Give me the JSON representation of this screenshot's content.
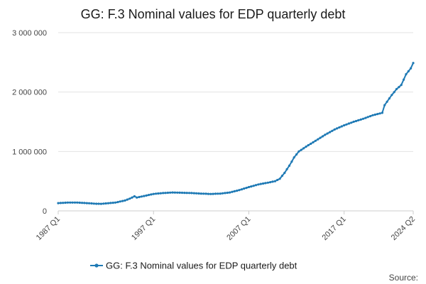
{
  "chart_data": {
    "type": "line",
    "title": "GG: F.3 Nominal values for EDP quarterly debt",
    "source_label": "Source:",
    "series_color": "#1f7ab5",
    "grid": true,
    "ylim": [
      0,
      3000000
    ],
    "y_ticks": [
      {
        "value": 0,
        "label": "0"
      },
      {
        "value": 1000000,
        "label": "1 000 000"
      },
      {
        "value": 2000000,
        "label": "2 000 000"
      },
      {
        "value": 3000000,
        "label": "3 000 000"
      }
    ],
    "x_range": [
      "1987 Q1",
      "2024 Q2"
    ],
    "x_ticks": [
      "1987 Q1",
      "1997 Q1",
      "2007 Q1",
      "2017 Q1",
      "2024 Q2"
    ],
    "legend": {
      "position": "bottom",
      "label": "GG: F.3 Nominal values for EDP quarterly debt"
    },
    "series": [
      {
        "name": "GG: F.3 Nominal values for EDP quarterly debt",
        "points": [
          [
            "1987 Q1",
            130000
          ],
          [
            "1988 Q1",
            140000
          ],
          [
            "1989 Q1",
            140000
          ],
          [
            "1990 Q1",
            130000
          ],
          [
            "1991 Q1",
            120000
          ],
          [
            "1991 Q3",
            118000
          ],
          [
            "1992 Q1",
            125000
          ],
          [
            "1993 Q1",
            140000
          ],
          [
            "1994 Q1",
            175000
          ],
          [
            "1994 Q3",
            205000
          ],
          [
            "1995 Q1",
            245000
          ],
          [
            "1995 Q2",
            225000
          ],
          [
            "1996 Q1",
            250000
          ],
          [
            "1997 Q1",
            285000
          ],
          [
            "1998 Q1",
            300000
          ],
          [
            "1999 Q1",
            310000
          ],
          [
            "2000 Q1",
            305000
          ],
          [
            "2001 Q1",
            300000
          ],
          [
            "2002 Q1",
            290000
          ],
          [
            "2003 Q1",
            285000
          ],
          [
            "2004 Q1",
            290000
          ],
          [
            "2005 Q1",
            310000
          ],
          [
            "2006 Q1",
            350000
          ],
          [
            "2007 Q1",
            400000
          ],
          [
            "2008 Q1",
            445000
          ],
          [
            "2009 Q1",
            475000
          ],
          [
            "2009 Q4",
            500000
          ],
          [
            "2010 Q2",
            540000
          ],
          [
            "2010 Q4",
            640000
          ],
          [
            "2011 Q2",
            760000
          ],
          [
            "2011 Q4",
            900000
          ],
          [
            "2012 Q2",
            1000000
          ],
          [
            "2013 Q1",
            1080000
          ],
          [
            "2014 Q1",
            1180000
          ],
          [
            "2015 Q1",
            1280000
          ],
          [
            "2016 Q1",
            1370000
          ],
          [
            "2017 Q1",
            1440000
          ],
          [
            "2018 Q1",
            1500000
          ],
          [
            "2019 Q1",
            1550000
          ],
          [
            "2020 Q1",
            1610000
          ],
          [
            "2020 Q4",
            1640000
          ],
          [
            "2021 Q1",
            1650000
          ],
          [
            "2021 Q2",
            1780000
          ],
          [
            "2022 Q1",
            1950000
          ],
          [
            "2022 Q3",
            2050000
          ],
          [
            "2023 Q1",
            2120000
          ],
          [
            "2023 Q3",
            2300000
          ],
          [
            "2024 Q1",
            2400000
          ],
          [
            "2024 Q2",
            2490000
          ]
        ]
      }
    ]
  }
}
